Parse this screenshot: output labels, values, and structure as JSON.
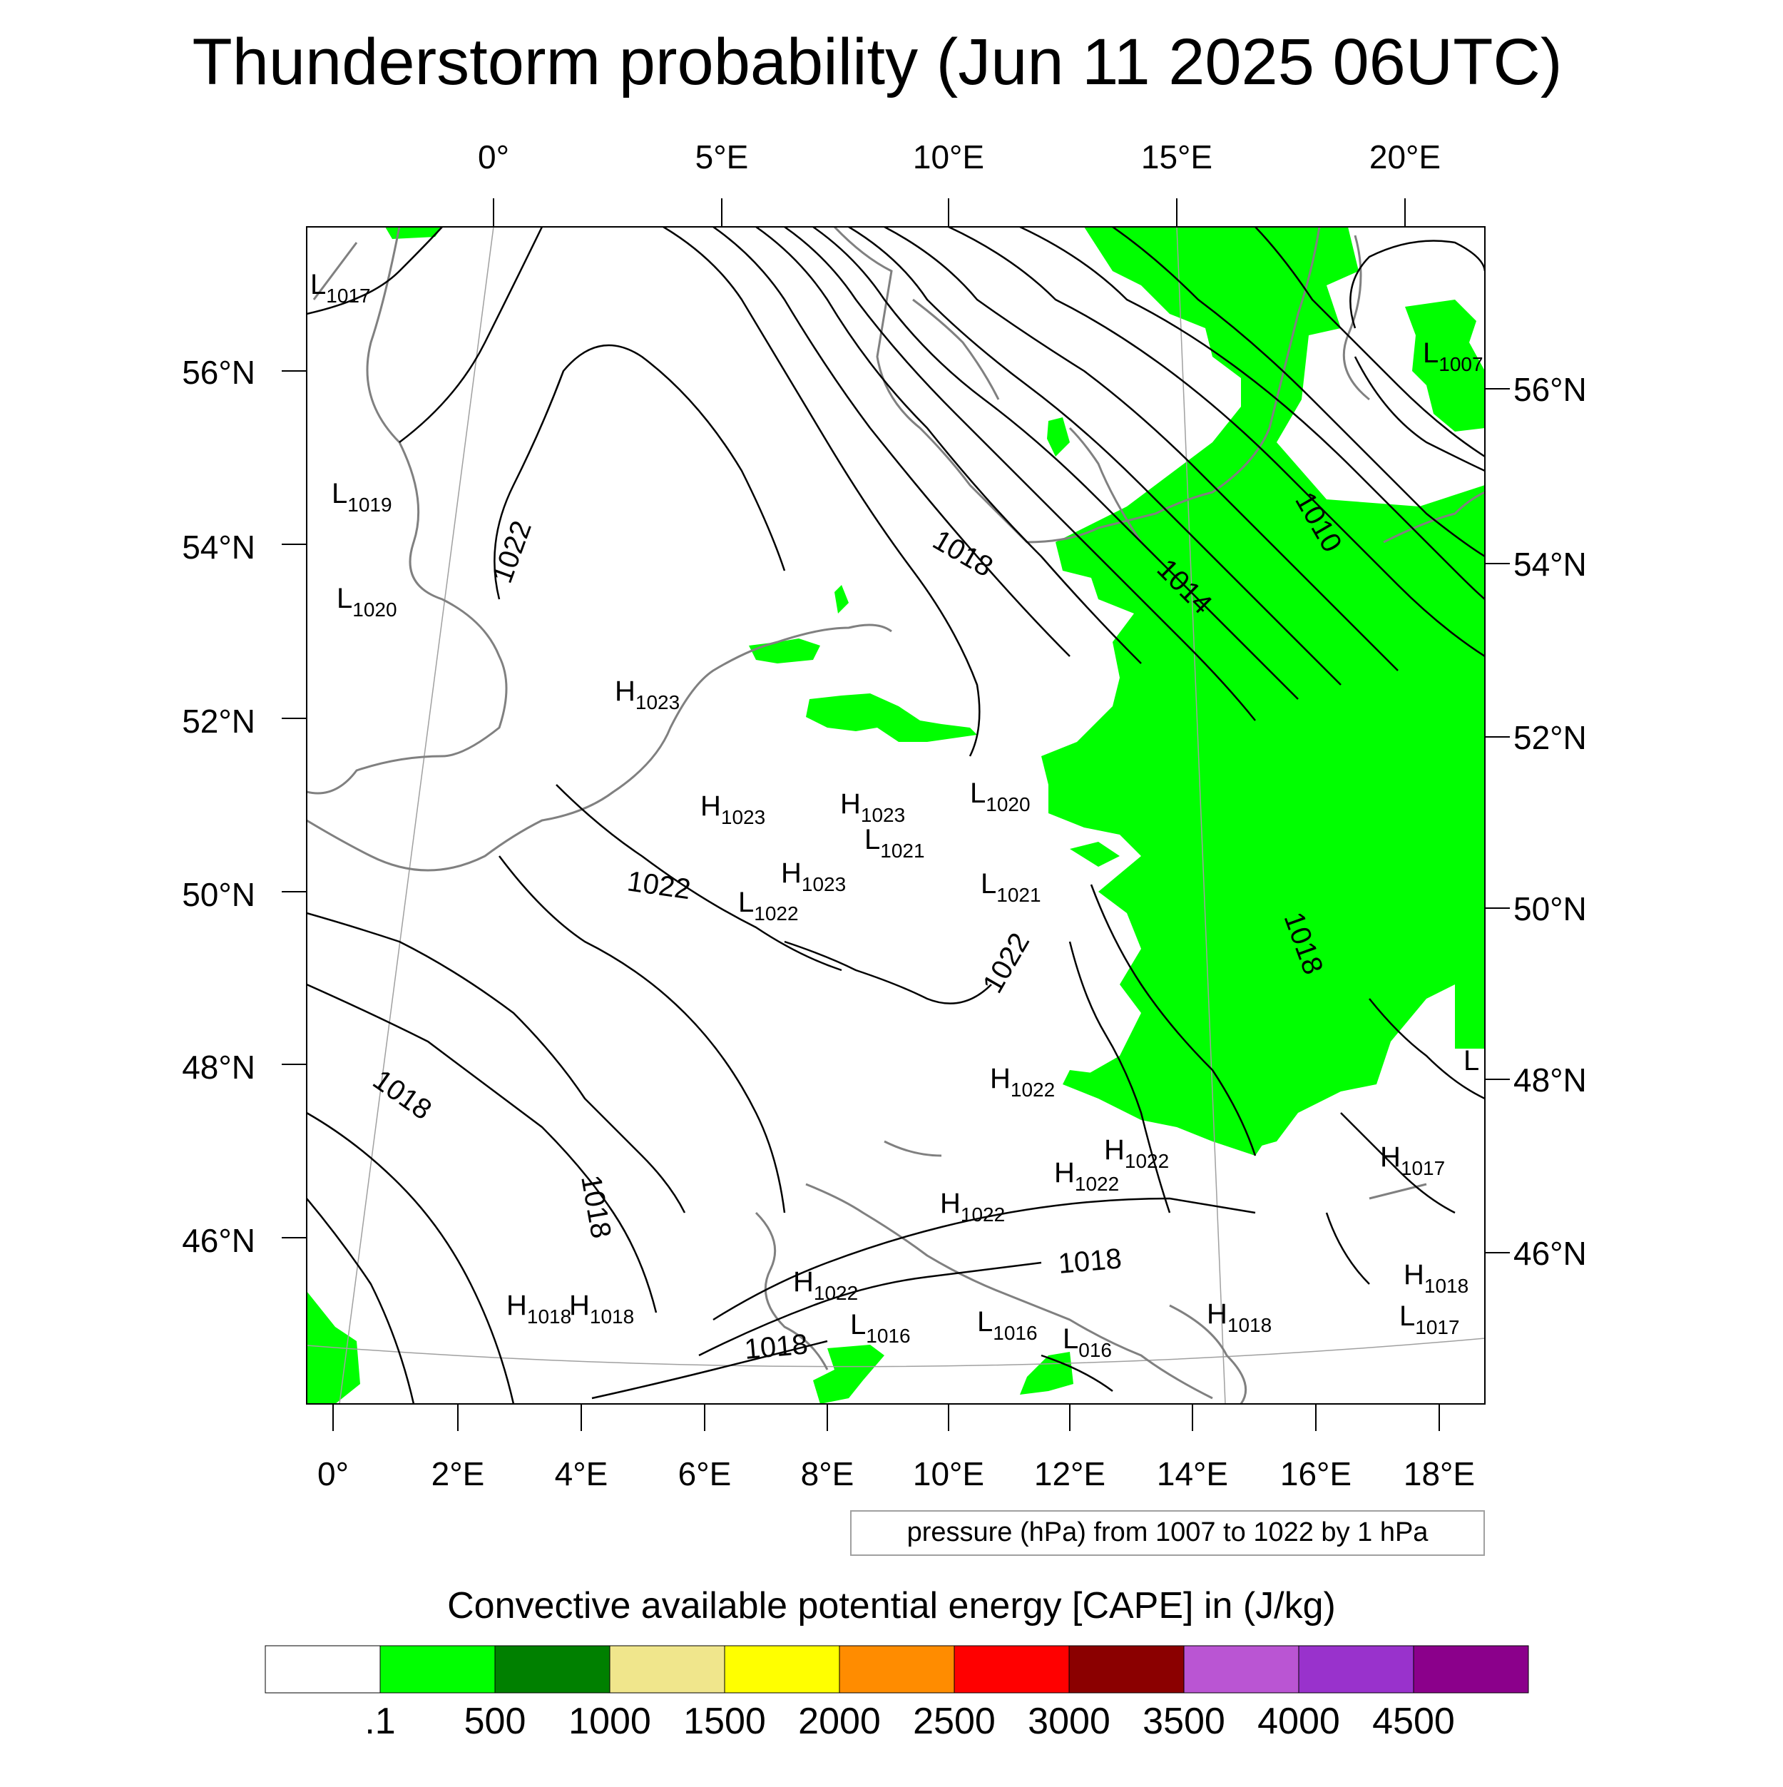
{
  "title": "Thunderstorm probability (Jun 11 2025 06UTC)",
  "top_lon_labels": [
    "0°",
    "5°E",
    "10°E",
    "15°E",
    "20°E"
  ],
  "bottom_lon_labels": [
    "0°",
    "2°E",
    "4°E",
    "6°E",
    "8°E",
    "10°E",
    "12°E",
    "14°E",
    "16°E",
    "18°E"
  ],
  "left_lat_labels": [
    "56°N",
    "54°N",
    "52°N",
    "50°N",
    "48°N",
    "46°N"
  ],
  "right_lat_labels": [
    "56°N",
    "54°N",
    "52°N",
    "50°N",
    "48°N",
    "46°N"
  ],
  "contour_labels": [
    "1022",
    "1022",
    "1022",
    "1018",
    "1018",
    "1018",
    "1018",
    "1014",
    "1010",
    "1018",
    "1018"
  ],
  "pressure_centers": [
    {
      "letter": "L",
      "value": "1017"
    },
    {
      "letter": "L",
      "value": "1019"
    },
    {
      "letter": "L",
      "value": "1020"
    },
    {
      "letter": "H",
      "value": "1023"
    },
    {
      "letter": "H",
      "value": "1023"
    },
    {
      "letter": "H",
      "value": "1023"
    },
    {
      "letter": "L",
      "value": "1021"
    },
    {
      "letter": "H",
      "value": "1023"
    },
    {
      "letter": "L",
      "value": "1022"
    },
    {
      "letter": "L",
      "value": "1020"
    },
    {
      "letter": "L",
      "value": "1021"
    },
    {
      "letter": "H",
      "value": "1022"
    },
    {
      "letter": "H",
      "value": "1022"
    },
    {
      "letter": "H",
      "value": "1022"
    },
    {
      "letter": "H",
      "value": "1022"
    },
    {
      "letter": "H",
      "value": "1022"
    },
    {
      "letter": "H",
      "value": "1018"
    },
    {
      "letter": "H",
      "value": "1018"
    },
    {
      "letter": "L",
      "value": "1016"
    },
    {
      "letter": "L",
      "value": "1016"
    },
    {
      "letter": "L",
      "value": "016"
    },
    {
      "letter": "H",
      "value": "1018"
    },
    {
      "letter": "H",
      "value": "1017"
    },
    {
      "letter": "H",
      "value": "1018"
    },
    {
      "letter": "L",
      "value": "1017"
    },
    {
      "letter": "L",
      "value": "1007"
    },
    {
      "letter": "L",
      "value": ""
    }
  ],
  "contour_info": "pressure (hPa) from 1007 to 1022 by 1 hPa",
  "colorbar": {
    "title": "Convective available potential energy [CAPE] in (J/kg)",
    "colors": [
      "#ffffff",
      "#00ff00",
      "#008000",
      "#f0e68c",
      "#ffff00",
      "#ff8c00",
      "#ff0000",
      "#8b0000",
      "#ba55d3",
      "#9932cc",
      "#8b008b"
    ],
    "labels": [
      ".1",
      "500",
      "1000",
      "1500",
      "2000",
      "2500",
      "3000",
      "3500",
      "4000",
      "4500"
    ]
  },
  "colors": {
    "cape_low": "#00ff00",
    "coastline": "#808080",
    "isobar": "#000000"
  }
}
